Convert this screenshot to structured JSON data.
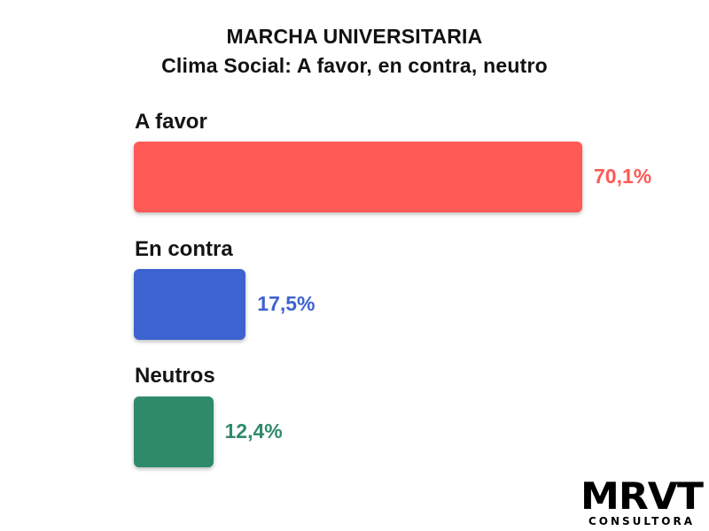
{
  "chart_data": {
    "type": "bar",
    "orientation": "horizontal",
    "title": "MARCHA UNIVERSITARIA",
    "subtitle": "Clima Social: A favor, en contra, neutro",
    "categories": [
      "A favor",
      "En contra",
      "Neutros"
    ],
    "values": [
      70.1,
      17.5,
      12.4
    ],
    "value_labels": [
      "70,1%",
      "17,5%",
      "12,4%"
    ],
    "colors": [
      "#ff5a55",
      "#3d63d0",
      "#2e8a69"
    ],
    "xlabel": "",
    "ylabel": "",
    "grid": false,
    "legend": "none"
  },
  "logo": {
    "main": "MRVT",
    "sub": "CONSULTORA"
  }
}
